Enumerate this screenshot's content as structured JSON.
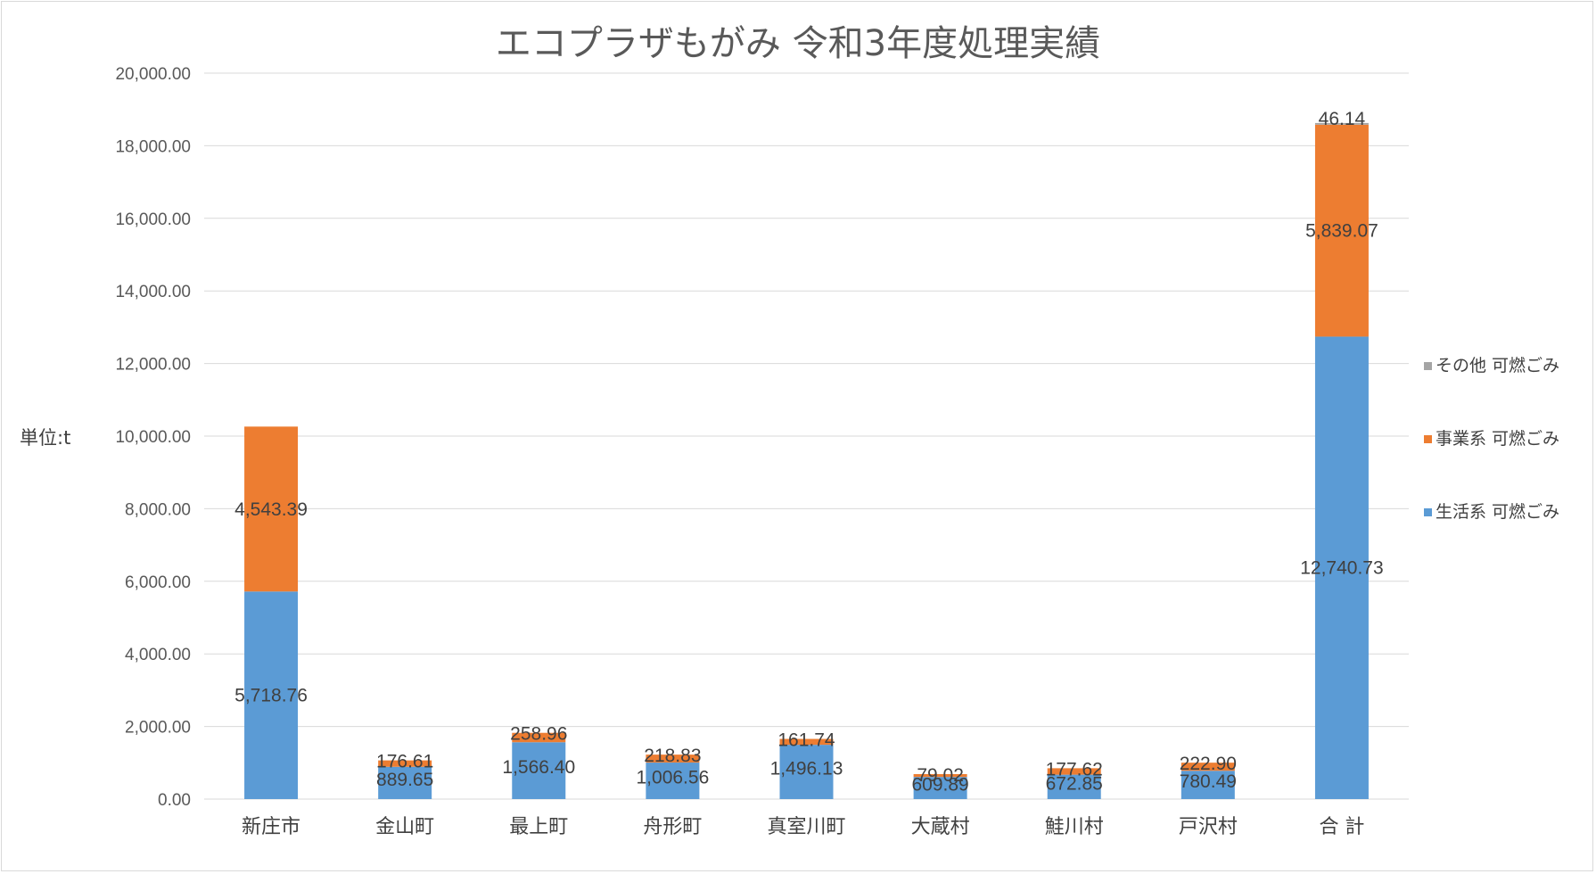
{
  "chart_data": {
    "type": "bar",
    "stacked": true,
    "title": "エコプラザもがみ 令和3年度処理実績",
    "ylabel": "単位:t",
    "xlabel": "",
    "ylim": [
      0,
      20000
    ],
    "ytick_step": 2000,
    "yticks": [
      "0.00",
      "2,000.00",
      "4,000.00",
      "6,000.00",
      "8,000.00",
      "10,000.00",
      "12,000.00",
      "14,000.00",
      "16,000.00",
      "18,000.00",
      "20,000.00"
    ],
    "grid": true,
    "legend_position": "right",
    "categories": [
      "新庄市",
      "金山町",
      "最上町",
      "舟形町",
      "真室川町",
      "大蔵村",
      "鮭川村",
      "戸沢村",
      "合 計"
    ],
    "series": [
      {
        "name": "生活系 可燃ごみ",
        "color": "#5b9bd5",
        "values": [
          5718.76,
          889.65,
          1566.4,
          1006.56,
          1496.13,
          609.89,
          672.85,
          780.49,
          12740.73
        ],
        "labels": [
          "5,718.76",
          "889.65",
          "1,566.40",
          "1,006.56",
          "1,496.13",
          "609.89",
          "672.85",
          "780.49",
          "12,740.73"
        ]
      },
      {
        "name": "事業系 可燃ごみ",
        "color": "#ed7d31",
        "values": [
          4543.39,
          176.61,
          258.96,
          218.83,
          161.74,
          79.02,
          177.62,
          222.9,
          5839.07
        ],
        "labels": [
          "4,543.39",
          "176.61",
          "258.96",
          "218.83",
          "161.74",
          "79.02",
          "177.62",
          "222.90",
          "5,839.07"
        ]
      },
      {
        "name": "その他 可燃ごみ",
        "color": "#a5a5a5",
        "values": [
          0,
          0,
          0,
          0,
          0,
          0,
          0,
          0,
          46.14
        ],
        "labels": [
          "",
          "",
          "",
          "",
          "",
          "",
          "",
          "",
          "46.14"
        ]
      }
    ]
  }
}
